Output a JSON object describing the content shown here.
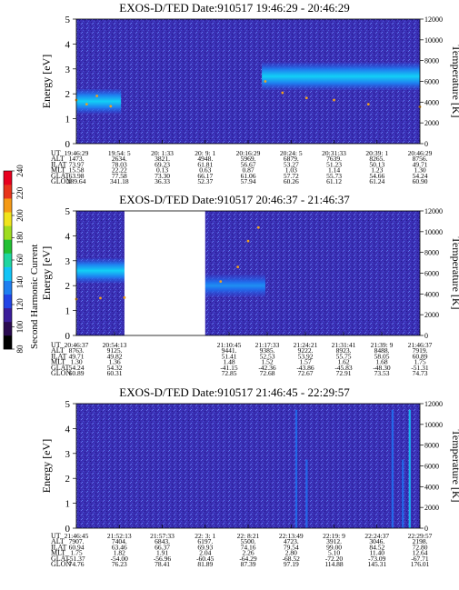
{
  "colorbar": {
    "label": "Second Harmonic Current",
    "ticks": [
      "80",
      "100",
      "120",
      "140",
      "160",
      "180",
      "200",
      "220",
      "240"
    ],
    "colors": [
      "#000000",
      "#2a0a50",
      "#3b1d9a",
      "#2244e6",
      "#1f7ff0",
      "#12c4f6",
      "#1fd6a0",
      "#22c033",
      "#9fdc1e",
      "#f0e41c",
      "#f59a16",
      "#e8341b",
      "#e8001e"
    ]
  },
  "chart_data": [
    {
      "type": "heatmap",
      "title": "EXOS-D/TED   Date:910517  19:46:29 - 20:46:29",
      "ylabel": "Energy [eV]",
      "y2label": "Temperature [K]",
      "ylim": [
        0,
        5
      ],
      "y2lim": [
        0,
        12000
      ],
      "yticks": [
        "0",
        "1",
        "2",
        "3",
        "4",
        "5"
      ],
      "y2ticks": [
        "0",
        "2000",
        "4000",
        "6000",
        "8000",
        "10000",
        "12000"
      ],
      "gaps": [],
      "bands": [
        {
          "t0": 0.0,
          "t1": 0.13,
          "center": 1.7,
          "width": 1.0,
          "level": "bright"
        },
        {
          "t0": 0.54,
          "t1": 1.0,
          "center": 2.7,
          "width": 1.1,
          "level": "bright"
        }
      ],
      "temperature_trace": [
        {
          "t": 0.0,
          "k": 4200
        },
        {
          "t": 0.03,
          "k": 3800
        },
        {
          "t": 0.06,
          "k": 4600
        },
        {
          "t": 0.1,
          "k": 3600
        },
        {
          "t": 0.55,
          "k": 6000
        },
        {
          "t": 0.6,
          "k": 4900
        },
        {
          "t": 0.67,
          "k": 4400
        },
        {
          "t": 0.75,
          "k": 4200
        },
        {
          "t": 0.85,
          "k": 3800
        },
        {
          "t": 1.0,
          "k": 3550
        }
      ],
      "orbit_rows": [
        {
          "label": "UT",
          "values": [
            "19:46:29",
            "19:54: 5",
            "20: 1:33",
            "20: 9: 1",
            "20:16:29",
            "20:24: 5",
            "20:31:33",
            "20:39: 1",
            "20:46:29"
          ]
        },
        {
          "label": "ALT",
          "values": [
            "1473.",
            "2634.",
            "3821.",
            "4948.",
            "5969.",
            "6879.",
            "7639.",
            "8265.",
            "8756."
          ]
        },
        {
          "label": "ILAT",
          "values": [
            "73.97",
            "78.03",
            "69.23",
            "61.81",
            "56.67",
            "53.27",
            "51.23",
            "50.13",
            "49.71"
          ]
        },
        {
          "label": "MLT",
          "values": [
            "15.58",
            "22.22",
            "0.13",
            "0.63",
            "0.87",
            "1.03",
            "1.14",
            "1.23",
            "1.30"
          ]
        },
        {
          "label": "GLAT",
          "values": [
            "63.98",
            "77.58",
            "73.30",
            "66.17",
            "61.06",
            "57.72",
            "55.73",
            "54.66",
            "54.24"
          ]
        },
        {
          "label": "GLON",
          "values": [
            "289.64",
            "341.18",
            "36.33",
            "52.37",
            "57.94",
            "60.26",
            "61.12",
            "61.24",
            "60.90"
          ]
        }
      ]
    },
    {
      "type": "heatmap",
      "title": "EXOS-D/TED   Date:910517  20:46:37 - 21:46:37",
      "ylabel": "Energy [eV]",
      "y2label": "Temperature [K]",
      "ylim": [
        0,
        5
      ],
      "y2lim": [
        0,
        12000
      ],
      "yticks": [
        "0",
        "1",
        "2",
        "3",
        "4",
        "5"
      ],
      "y2ticks": [
        "0",
        "2000",
        "4000",
        "6000",
        "8000",
        "10000",
        "12000"
      ],
      "gaps": [
        {
          "t0": 0.14,
          "t1": 0.375
        }
      ],
      "bands": [
        {
          "t0": 0.0,
          "t1": 0.14,
          "center": 2.6,
          "width": 1.0,
          "level": "bright"
        },
        {
          "t0": 0.375,
          "t1": 0.55,
          "center": 2.0,
          "width": 0.9,
          "level": "mid"
        }
      ],
      "temperature_trace": [
        {
          "t": 0.0,
          "k": 3500
        },
        {
          "t": 0.07,
          "k": 3600
        },
        {
          "t": 0.14,
          "k": 3650
        },
        {
          "t": 0.42,
          "k": 5200
        },
        {
          "t": 0.47,
          "k": 6600
        },
        {
          "t": 0.5,
          "k": 9100
        },
        {
          "t": 0.53,
          "k": 10400
        }
      ],
      "orbit_rows": [
        {
          "label": "UT",
          "values": [
            "20:46:37",
            "20:54:13",
            "",
            "",
            "21:10:45",
            "21:17:33",
            "21:24:21",
            "21:31:41",
            "21:39: 9",
            "21:46:37"
          ]
        },
        {
          "label": "ALT",
          "values": [
            "8763.",
            "9125.",
            "",
            "",
            "9441.",
            "9385.",
            "9222.",
            "8923.",
            "8488.",
            "7919."
          ]
        },
        {
          "label": "ILAT",
          "values": [
            "49.71",
            "49.82",
            "",
            "",
            "51.41",
            "52.53",
            "53.92",
            "55.75",
            "58.05",
            "60.89"
          ]
        },
        {
          "label": "MLT",
          "values": [
            "1.30",
            "1.36",
            "",
            "",
            "1.48",
            "1.52",
            "1.57",
            "1.62",
            "1.68",
            "1.75"
          ]
        },
        {
          "label": "GLAT",
          "values": [
            "54.24",
            "54.32",
            "",
            "",
            "-41.15",
            "-42.36",
            "-43.86",
            "-45.83",
            "-48.30",
            "-51.31"
          ]
        },
        {
          "label": "GLON",
          "values": [
            "60.89",
            "60.31",
            "",
            "",
            "72.85",
            "72.68",
            "72.67",
            "72.91",
            "73.53",
            "74.73"
          ]
        }
      ]
    },
    {
      "type": "heatmap",
      "title": "EXOS-D/TED   Date:910517  21:46:45 - 22:29:57",
      "ylabel": "Energy [eV]",
      "y2label": "Temperature [K]",
      "ylim": [
        0,
        5
      ],
      "y2lim": [
        0,
        12000
      ],
      "yticks": [
        "0",
        "1",
        "2",
        "3",
        "4",
        "5"
      ],
      "y2ticks": [
        "0",
        "2000",
        "4000",
        "6000",
        "8000",
        "10000",
        "12000"
      ],
      "gaps": [],
      "bands": [],
      "spikes": [
        0.64,
        0.67,
        0.92,
        0.95,
        0.97
      ],
      "temperature_trace": [],
      "orbit_rows": [
        {
          "label": "UT",
          "values": [
            "21:46:45",
            "21:52:13",
            "21:57:33",
            "22: 3: 1",
            "22: 8:21",
            "22:13:49",
            "22:19: 9",
            "22:24:37",
            "22:29:57"
          ]
        },
        {
          "label": "ALT",
          "values": [
            "7907.",
            "7404.",
            "6843.",
            "6197.",
            "5500.",
            "4723.",
            "3912.",
            "3046.",
            "2198."
          ]
        },
        {
          "label": "ILAT",
          "values": [
            "60.94",
            "63.46",
            "66.37",
            "69.93",
            "74.16",
            "79.54",
            "99.00",
            "84.52",
            "72.80"
          ]
        },
        {
          "label": "MLT",
          "values": [
            "1.75",
            "1.82",
            "1.91",
            "2.04",
            "2.26",
            "2.80",
            "5.10",
            "11.40",
            "12.64"
          ]
        },
        {
          "label": "GLAT",
          "values": [
            "-51.37",
            "-54.00",
            "-56.96",
            "-60.45",
            "-64.29",
            "-68.52",
            "-72.20",
            "-73.09",
            "-67.71"
          ]
        },
        {
          "label": "GLON",
          "values": [
            "74.76",
            "76.23",
            "78.41",
            "81.89",
            "87.39",
            "97.19",
            "114.88",
            "145.31",
            "176.01"
          ]
        }
      ]
    }
  ]
}
